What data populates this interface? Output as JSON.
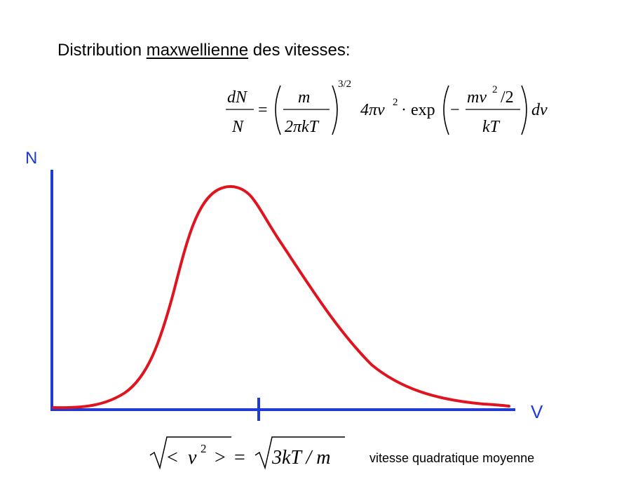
{
  "title": {
    "prefix": "Distribution ",
    "underlined": "maxwellienne",
    "suffix": " des vitesses:"
  },
  "formula": {
    "lhs_num": "dN",
    "lhs_den": "N",
    "equals": "=",
    "paren_num": "m",
    "paren_den": "2πkT",
    "exponent": "3/2",
    "term": "4πv",
    "term_exp": "2",
    "dot": "·",
    "exp_fn": "exp",
    "minus": "−",
    "exp_num": "mv",
    "exp_num_exp": "2",
    "exp_num_tail": "/2",
    "exp_den": "kT",
    "differential": "dv"
  },
  "axes": {
    "y_label": "N",
    "x_label": "V",
    "color": "#1f3ad6"
  },
  "curve": {
    "color": "#e0141e"
  },
  "rms": {
    "lhs_open": "<",
    "lhs_var": "v",
    "lhs_exp": "2",
    "lhs_close": ">",
    "equals": "=",
    "rhs": "3kT / m",
    "caption": "vitesse quadratique moyenne"
  }
}
